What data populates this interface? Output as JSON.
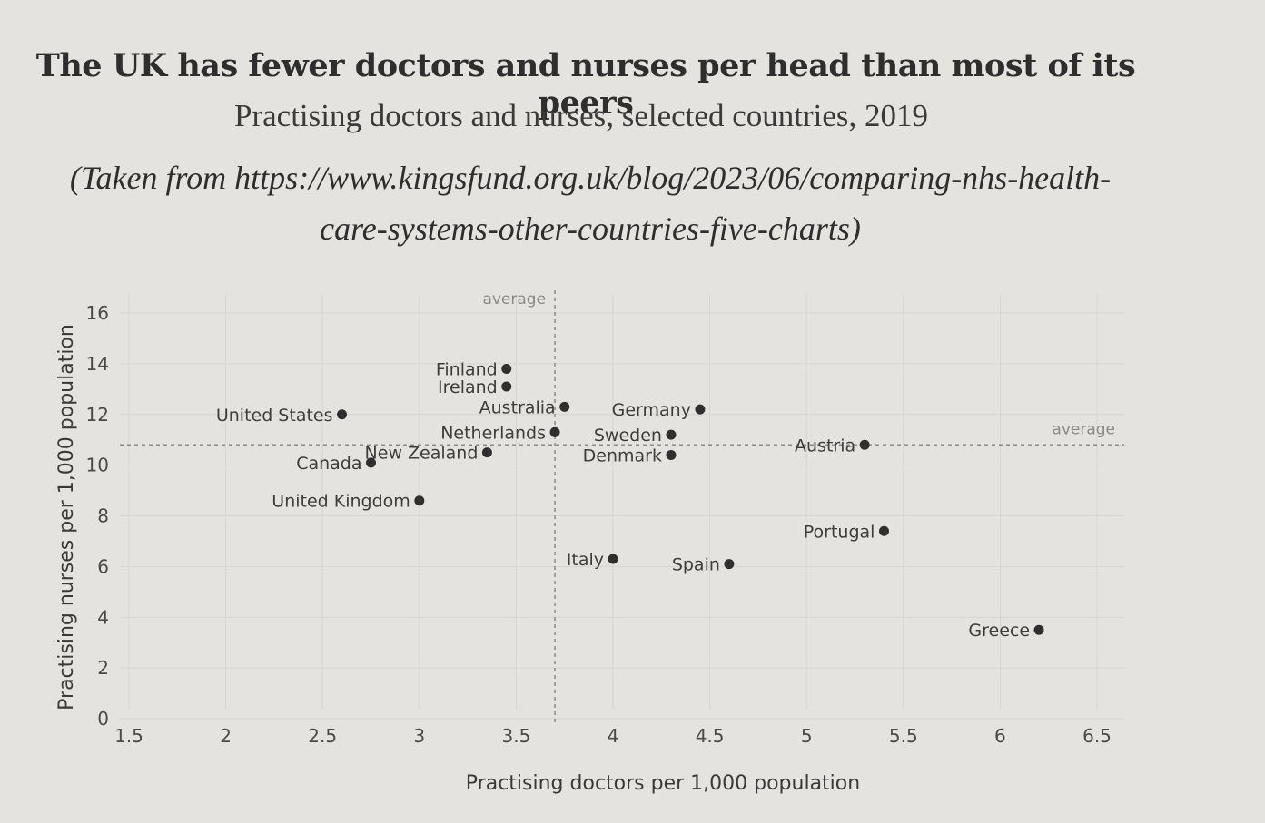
{
  "chart_data": {
    "type": "scatter",
    "title": "The UK has fewer doctors and nurses per head than most of its peers",
    "subtitle": "Practising doctors and nurses, selected countries, 2019",
    "source": "(Taken from https://www.kingsfund.org.uk/blog/2023/06/comparing-nhs-health-care-systems-other-countries-five-charts)",
    "xlabel": "Practising doctors per 1,000 population",
    "ylabel": "Practising nurses per 1,000 population",
    "xlim": [
      1.5,
      6.5
    ],
    "ylim": [
      0,
      16
    ],
    "xticks": [
      "1.5",
      "2",
      "2.5",
      "3",
      "3.5",
      "4",
      "4.5",
      "5",
      "5.5",
      "6",
      "6.5"
    ],
    "yticks": [
      "0",
      "2",
      "4",
      "6",
      "8",
      "10",
      "12",
      "14",
      "16"
    ],
    "grid": true,
    "averages": {
      "x": 3.7,
      "y": 10.8,
      "label": "average"
    },
    "points": [
      {
        "name": "Finland",
        "x": 3.45,
        "y": 13.8,
        "label_side": "left"
      },
      {
        "name": "Ireland",
        "x": 3.45,
        "y": 13.1,
        "label_side": "left"
      },
      {
        "name": "Australia",
        "x": 3.75,
        "y": 12.3,
        "label_side": "left"
      },
      {
        "name": "Germany",
        "x": 4.45,
        "y": 12.2,
        "label_side": "left"
      },
      {
        "name": "United States",
        "x": 2.6,
        "y": 12.0,
        "label_side": "left"
      },
      {
        "name": "Netherlands",
        "x": 3.7,
        "y": 11.3,
        "label_side": "left"
      },
      {
        "name": "Sweden",
        "x": 4.3,
        "y": 11.2,
        "label_side": "left"
      },
      {
        "name": "Austria",
        "x": 5.3,
        "y": 10.8,
        "label_side": "left"
      },
      {
        "name": "New Zealand",
        "x": 3.35,
        "y": 10.5,
        "label_side": "left"
      },
      {
        "name": "Denmark",
        "x": 4.3,
        "y": 10.4,
        "label_side": "left"
      },
      {
        "name": "Canada",
        "x": 2.75,
        "y": 10.1,
        "label_side": "left"
      },
      {
        "name": "United Kingdom",
        "x": 3.0,
        "y": 8.6,
        "label_side": "left"
      },
      {
        "name": "Portugal",
        "x": 5.4,
        "y": 7.4,
        "label_side": "left"
      },
      {
        "name": "Italy",
        "x": 4.0,
        "y": 6.3,
        "label_side": "left"
      },
      {
        "name": "Spain",
        "x": 4.6,
        "y": 6.1,
        "label_side": "left"
      },
      {
        "name": "Greece",
        "x": 6.2,
        "y": 3.5,
        "label_side": "left"
      }
    ]
  }
}
